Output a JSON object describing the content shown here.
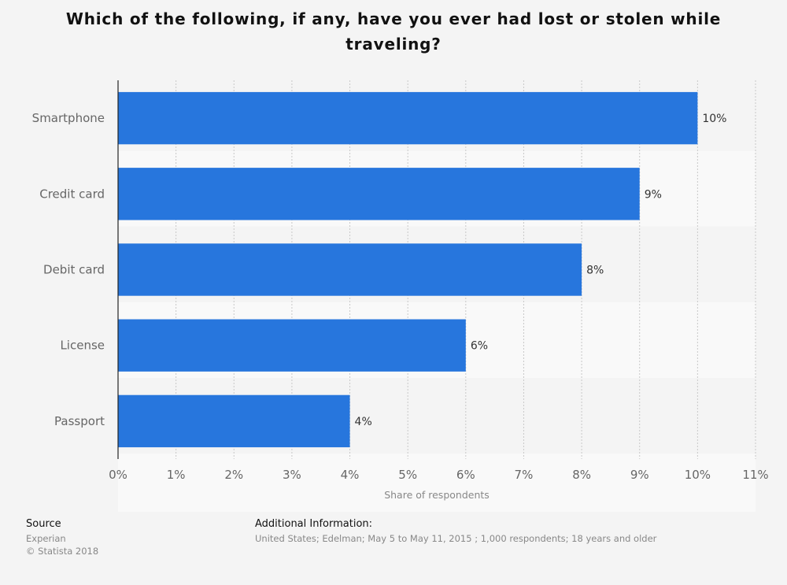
{
  "chart_data": {
    "type": "bar",
    "orientation": "horizontal",
    "title": "Which of the following, if any, have you ever had lost or stolen while traveling?",
    "categories": [
      "Smartphone",
      "Credit card",
      "Debit card",
      "License",
      "Passport"
    ],
    "values": [
      10,
      9,
      8,
      6,
      4
    ],
    "value_labels": [
      "10%",
      "9%",
      "8%",
      "6%",
      "4%"
    ],
    "xlabel": "Share of respondents",
    "ylabel": "",
    "xlim": [
      0,
      11
    ],
    "ticks": [
      0,
      1,
      2,
      3,
      4,
      5,
      6,
      7,
      8,
      9,
      10,
      11
    ],
    "tick_labels": [
      "0%",
      "1%",
      "2%",
      "3%",
      "4%",
      "5%",
      "6%",
      "7%",
      "8%",
      "9%",
      "10%",
      "11%"
    ],
    "grid": true,
    "bar_color": "#2776dd"
  },
  "footer": {
    "source_heading": "Source",
    "source_lines": [
      "Experian",
      "© Statista 2018"
    ],
    "info_heading": "Additional Information:",
    "info_text": "United States; Edelman; May 5 to May 11, 2015 ; 1,000 respondents; 18 years and older"
  }
}
